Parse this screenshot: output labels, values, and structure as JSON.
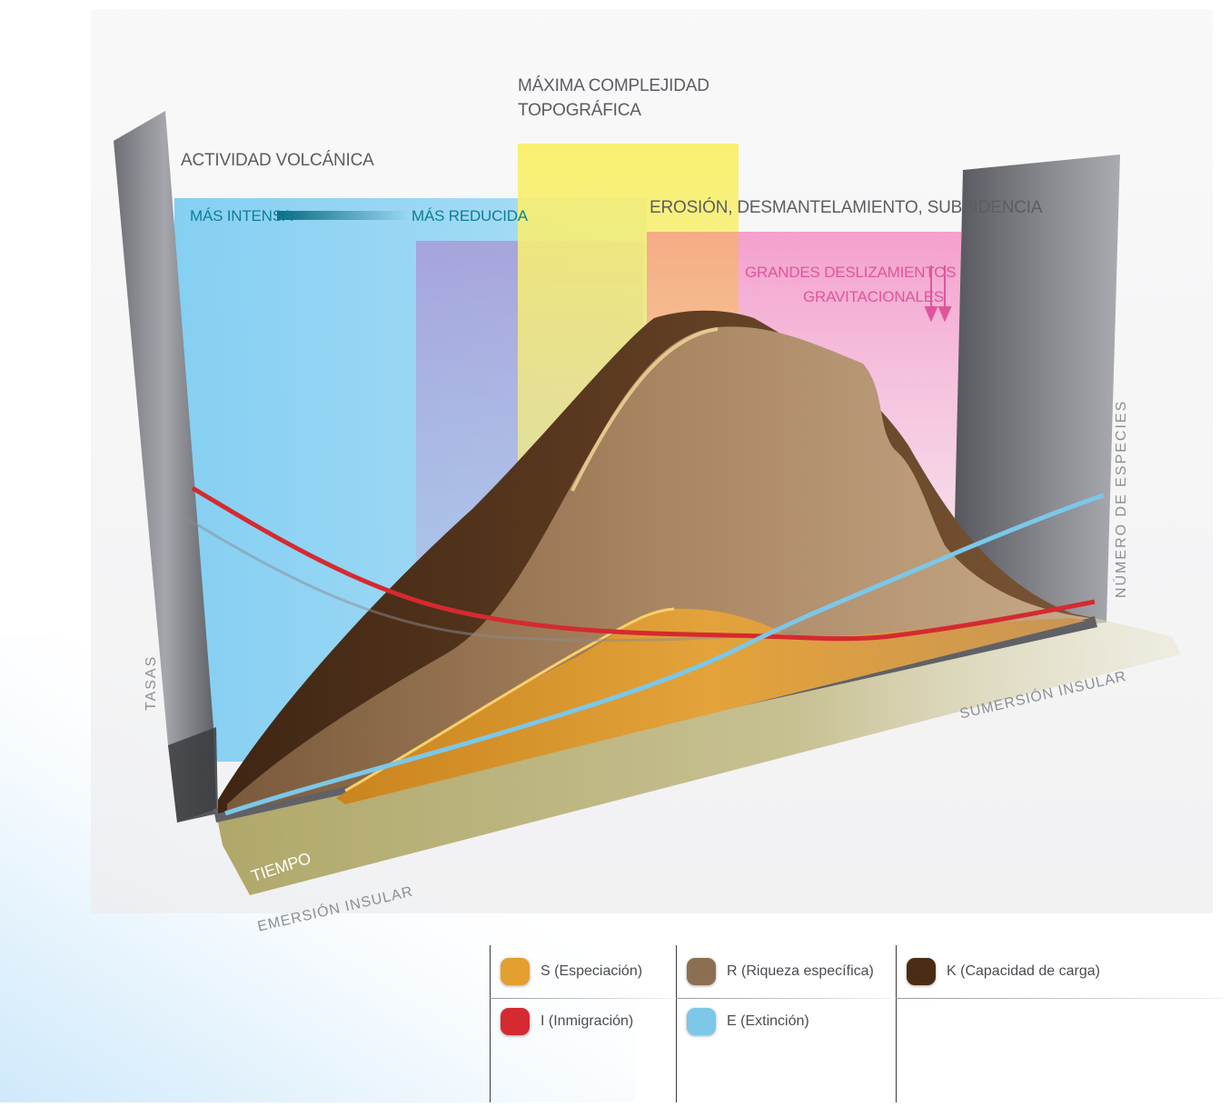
{
  "annotations": {
    "max_complexity_line1": "MÁXIMA COMPLEJIDAD",
    "max_complexity_line2": "TOPOGRÁFICA",
    "volcanic_activity": "ACTIVIDAD VOLCÁNICA",
    "more_intense": "MÁS INTENSA",
    "more_reduced": "MÁS REDUCIDA",
    "erosion": "EROSIÓN, DESMANTELAMIENTO, SUBSIDENCIA",
    "landslides_line1": "GRANDES DESLIZAMIENTOS",
    "landslides_line2": "GRAVITACIONALES"
  },
  "axes": {
    "left": "TASAS",
    "right": "NÚMERO DE ESPECIES",
    "time": "TIEMPO",
    "start": "EMERSIÓN INSULAR",
    "end": "SUMERSIÓN INSULAR"
  },
  "legend": [
    {
      "label": "S (Especiación)",
      "color": "#e3a02e"
    },
    {
      "label": "R (Riqueza específica)",
      "color": "#8c6f52"
    },
    {
      "label": "K (Capacidad de carga)",
      "color": "#4a2c14"
    },
    {
      "label": "I (Inmigración)",
      "color": "#d42a30"
    },
    {
      "label": "E (Extinción)",
      "color": "#7cc7e8"
    }
  ],
  "colors": {
    "volcanic_band": "#8fd3f3",
    "complexity_band": "#f8ee6e",
    "erosion_band": "#f5a9d0",
    "reduced_band": "#b9a3d8",
    "immigration": "#d42a30",
    "extinction": "#7cc7e8",
    "base_floor": "#b9b27a"
  }
}
